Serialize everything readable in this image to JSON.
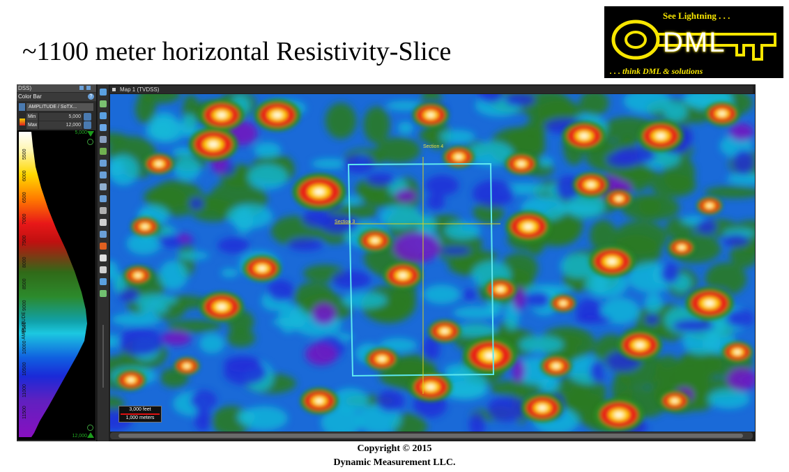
{
  "slide": {
    "title": "~1100 meter horizontal Resistivity-Slice",
    "copyright_line": "Copyright  © 2015",
    "company_line": "Dynamic  Measurement LLC."
  },
  "logo": {
    "tagline_top": "See Lightning . . .",
    "wordmark": "DML",
    "tagline_bottom": ". . . think DML & solutions",
    "colors": {
      "background": "#000000",
      "accent": "#f7e600"
    }
  },
  "left_panel": {
    "top_label": "DSS)",
    "panel_title": "Color Bar",
    "attribute_select": "AMPLITUDE / SoTX...",
    "min_label": "Min",
    "min_value": "5,000",
    "max_label": "Max",
    "max_value": "12,000",
    "colorbar_top_value": "5,000",
    "colorbar_bottom_value": "12,000",
    "axis_label": "AMPLITUDE",
    "tick_labels": [
      "5500",
      "6000",
      "6500",
      "7000",
      "7500",
      "8000",
      "8500",
      "9000",
      "9500",
      "10000",
      "10500",
      "11000",
      "11500"
    ]
  },
  "map_window": {
    "title": "Map 1 (TVDSS)",
    "section_labels": {
      "vertical": "Section 4",
      "horizontal": "Section 3"
    },
    "scalebar": {
      "feet": "3,000 feet",
      "meters": "1,000 meters"
    },
    "colors": {
      "survey_outline": "#5ee8f0",
      "section_line": "#d8d020"
    }
  },
  "toolbar": {
    "icons": [
      "zoom-in-icon",
      "grid-icon",
      "zoom-out-icon",
      "rotate-icon",
      "layer-icon",
      "map-icon",
      "pan-icon",
      "arrow-icon",
      "select-icon",
      "path-icon",
      "measure-icon",
      "slice-icon",
      "layers-icon",
      "pick-icon",
      "polygon-icon",
      "fill-icon",
      "rect-icon",
      "zoom-icon"
    ]
  }
}
